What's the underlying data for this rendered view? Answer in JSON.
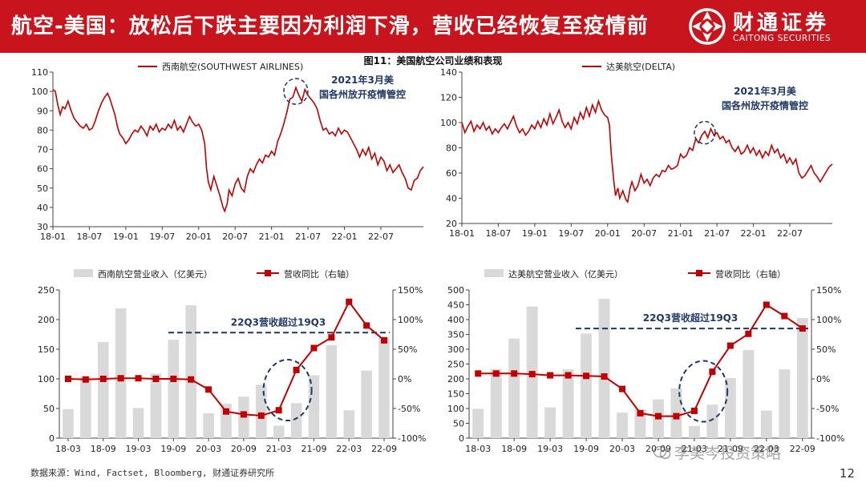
{
  "header": {
    "title": "航空-美国：放松后下跌主要因为利润下滑，营收已经恢复至疫情前",
    "brand_cn": "财通证券",
    "brand_en": "CAITONG SECURITIES"
  },
  "figure_title": "图11：美国航空公司业绩和表现",
  "footer": {
    "source": "数据来源：Wind, Factset, Bloomberg, 财通证券研究所",
    "page": "12",
    "watermark": "李美岑投资策略"
  },
  "colors": {
    "header_bg": "#c8141c",
    "line": "#c00000",
    "bar": "#d9d9d9",
    "dashed": "#1f3864",
    "annotation": "#1f3864"
  },
  "chart_data": [
    {
      "id": "sw-price",
      "type": "line",
      "series_name": "西南航空(SOUTHWEST AIRLINES)",
      "ylim": [
        30,
        110
      ],
      "yticks": [
        30,
        40,
        50,
        60,
        70,
        80,
        90,
        100,
        110
      ],
      "xlim": [
        0,
        61
      ],
      "xtick_labels": [
        "18-01",
        "18-07",
        "19-01",
        "19-07",
        "20-01",
        "20-07",
        "21-01",
        "21-07",
        "22-01",
        "22-07"
      ],
      "xtick_positions": [
        0,
        6,
        12,
        18,
        24,
        30,
        36,
        42,
        48,
        54
      ],
      "annotation": "2021年3月美国各州放开疫情管控",
      "annotation_at": [
        40,
        100
      ],
      "values": [
        [
          0,
          101
        ],
        [
          0.4,
          100
        ],
        [
          0.8,
          93
        ],
        [
          1.2,
          88
        ],
        [
          1.6,
          92
        ],
        [
          2,
          91
        ],
        [
          2.5,
          95
        ],
        [
          3,
          90
        ],
        [
          3.5,
          86
        ],
        [
          4,
          84
        ],
        [
          4.5,
          82
        ],
        [
          5,
          81
        ],
        [
          5.5,
          83
        ],
        [
          6,
          80
        ],
        [
          6.5,
          81
        ],
        [
          7,
          85
        ],
        [
          7.5,
          90
        ],
        [
          8,
          94
        ],
        [
          8.5,
          97
        ],
        [
          9,
          99
        ],
        [
          9.4,
          96
        ],
        [
          9.8,
          92
        ],
        [
          10.2,
          88
        ],
        [
          10.6,
          82
        ],
        [
          11,
          78
        ],
        [
          11.5,
          76
        ],
        [
          12,
          73
        ],
        [
          12.5,
          75
        ],
        [
          13,
          78
        ],
        [
          13.5,
          80
        ],
        [
          14,
          79
        ],
        [
          14.5,
          82
        ],
        [
          15,
          80
        ],
        [
          15.5,
          77
        ],
        [
          16,
          82
        ],
        [
          16.5,
          80
        ],
        [
          17,
          83
        ],
        [
          17.5,
          79
        ],
        [
          18,
          81
        ],
        [
          18.5,
          80
        ],
        [
          19,
          83
        ],
        [
          19.5,
          81
        ],
        [
          20,
          85
        ],
        [
          20.5,
          80
        ],
        [
          21,
          82
        ],
        [
          21.5,
          79
        ],
        [
          22,
          83
        ],
        [
          22.5,
          87
        ],
        [
          23,
          84
        ],
        [
          23.5,
          82
        ],
        [
          24,
          83
        ],
        [
          24.5,
          80
        ],
        [
          25,
          73
        ],
        [
          25.3,
          60
        ],
        [
          25.6,
          53
        ],
        [
          26,
          49
        ],
        [
          26.5,
          56
        ],
        [
          27,
          51
        ],
        [
          27.5,
          46
        ],
        [
          28,
          40
        ],
        [
          28.3,
          38
        ],
        [
          28.7,
          42
        ],
        [
          29,
          49
        ],
        [
          29.5,
          46
        ],
        [
          30,
          52
        ],
        [
          30.5,
          55
        ],
        [
          31,
          50
        ],
        [
          31.5,
          48
        ],
        [
          32,
          56
        ],
        [
          32.5,
          60
        ],
        [
          33,
          58
        ],
        [
          33.5,
          62
        ],
        [
          34,
          65
        ],
        [
          34.5,
          63
        ],
        [
          35,
          67
        ],
        [
          35.5,
          66
        ],
        [
          36,
          69
        ],
        [
          36.5,
          67
        ],
        [
          37,
          74
        ],
        [
          37.5,
          78
        ],
        [
          38,
          83
        ],
        [
          38.5,
          89
        ],
        [
          39,
          96
        ],
        [
          39.5,
          97
        ],
        [
          40,
          102
        ],
        [
          40.5,
          98
        ],
        [
          41,
          95
        ],
        [
          41.5,
          101
        ],
        [
          42,
          98
        ],
        [
          42.5,
          96
        ],
        [
          43,
          94
        ],
        [
          43.5,
          91
        ],
        [
          44,
          85
        ],
        [
          44.5,
          80
        ],
        [
          45,
          81
        ],
        [
          45.5,
          78
        ],
        [
          46,
          79
        ],
        [
          46.5,
          77
        ],
        [
          47,
          81
        ],
        [
          47.5,
          78
        ],
        [
          48,
          80
        ],
        [
          48.5,
          79
        ],
        [
          49,
          76
        ],
        [
          49.5,
          73
        ],
        [
          50,
          70
        ],
        [
          50.5,
          66
        ],
        [
          51,
          70
        ],
        [
          51.5,
          67
        ],
        [
          52,
          71
        ],
        [
          52.5,
          65
        ],
        [
          53,
          68
        ],
        [
          53.5,
          62
        ],
        [
          54,
          66
        ],
        [
          54.5,
          64
        ],
        [
          55,
          59
        ],
        [
          55.5,
          62
        ],
        [
          56,
          58
        ],
        [
          56.5,
          60
        ],
        [
          57,
          62
        ],
        [
          57.5,
          58
        ],
        [
          58,
          55
        ],
        [
          58.5,
          50
        ],
        [
          59,
          49
        ],
        [
          59.5,
          54
        ],
        [
          60,
          55
        ],
        [
          60.5,
          59
        ],
        [
          61,
          61
        ]
      ]
    },
    {
      "id": "dl-price",
      "type": "line",
      "series_name": "达美航空(DELTA)",
      "ylim": [
        20,
        140
      ],
      "yticks": [
        20,
        40,
        60,
        80,
        100,
        120,
        140
      ],
      "xlim": [
        0,
        61
      ],
      "xtick_labels": [
        "18-01",
        "18-07",
        "19-01",
        "19-07",
        "20-01",
        "20-07",
        "21-01",
        "21-07",
        "22-01",
        "22-07"
      ],
      "xtick_positions": [
        0,
        6,
        12,
        18,
        24,
        30,
        36,
        42,
        48,
        54
      ],
      "annotation": "2021年3月美国各州放开疫情管控",
      "annotation_at": [
        40,
        92
      ],
      "values": [
        [
          0,
          100
        ],
        [
          0.5,
          92
        ],
        [
          1,
          97
        ],
        [
          1.5,
          101
        ],
        [
          2,
          93
        ],
        [
          2.5,
          98
        ],
        [
          3,
          95
        ],
        [
          3.5,
          100
        ],
        [
          4,
          94
        ],
        [
          4.5,
          97
        ],
        [
          5,
          91
        ],
        [
          5.5,
          95
        ],
        [
          6,
          92
        ],
        [
          6.5,
          96
        ],
        [
          7,
          99
        ],
        [
          7.5,
          95
        ],
        [
          8,
          100
        ],
        [
          8.5,
          105
        ],
        [
          9,
          97
        ],
        [
          9.5,
          92
        ],
        [
          10,
          95
        ],
        [
          10.5,
          90
        ],
        [
          11,
          93
        ],
        [
          11.5,
          98
        ],
        [
          12,
          95
        ],
        [
          12.5,
          101
        ],
        [
          13,
          96
        ],
        [
          13.5,
          103
        ],
        [
          14,
          98
        ],
        [
          14.5,
          107
        ],
        [
          15,
          99
        ],
        [
          15.5,
          104
        ],
        [
          16,
          110
        ],
        [
          16.5,
          101
        ],
        [
          17,
          96
        ],
        [
          17.5,
          100
        ],
        [
          18,
          95
        ],
        [
          18.5,
          104
        ],
        [
          19,
          99
        ],
        [
          19.5,
          108
        ],
        [
          20,
          103
        ],
        [
          20.5,
          112
        ],
        [
          21,
          105
        ],
        [
          21.5,
          114
        ],
        [
          22,
          108
        ],
        [
          22.5,
          117
        ],
        [
          23,
          110
        ],
        [
          23.5,
          106
        ],
        [
          24,
          104
        ],
        [
          24.3,
          98
        ],
        [
          24.6,
          75
        ],
        [
          25,
          55
        ],
        [
          25.3,
          42
        ],
        [
          25.7,
          48
        ],
        [
          26,
          40
        ],
        [
          26.5,
          46
        ],
        [
          27,
          39
        ],
        [
          27.3,
          37
        ],
        [
          27.7,
          48
        ],
        [
          28,
          53
        ],
        [
          28.5,
          46
        ],
        [
          29,
          50
        ],
        [
          29.5,
          59
        ],
        [
          30,
          52
        ],
        [
          30.5,
          55
        ],
        [
          31,
          50
        ],
        [
          31.5,
          56
        ],
        [
          32,
          59
        ],
        [
          32.5,
          57
        ],
        [
          33,
          62
        ],
        [
          33.5,
          61
        ],
        [
          34,
          66
        ],
        [
          34.5,
          63
        ],
        [
          35,
          64
        ],
        [
          35.5,
          66
        ],
        [
          36,
          75
        ],
        [
          36.5,
          72
        ],
        [
          37,
          74
        ],
        [
          37.5,
          80
        ],
        [
          38,
          78
        ],
        [
          38.5,
          87
        ],
        [
          39,
          84
        ],
        [
          39.5,
          90
        ],
        [
          40,
          93
        ],
        [
          40.5,
          88
        ],
        [
          41,
          95
        ],
        [
          41.5,
          90
        ],
        [
          42,
          92
        ],
        [
          42.5,
          87
        ],
        [
          43,
          89
        ],
        [
          43.5,
          84
        ],
        [
          44,
          86
        ],
        [
          44.5,
          80
        ],
        [
          45,
          77
        ],
        [
          45.5,
          81
        ],
        [
          46,
          75
        ],
        [
          46.5,
          77
        ],
        [
          47,
          82
        ],
        [
          47.5,
          76
        ],
        [
          48,
          80
        ],
        [
          48.5,
          74
        ],
        [
          49,
          78
        ],
        [
          49.5,
          72
        ],
        [
          50,
          77
        ],
        [
          50.5,
          74
        ],
        [
          51,
          82
        ],
        [
          51.5,
          76
        ],
        [
          52,
          79
        ],
        [
          52.5,
          72
        ],
        [
          53,
          75
        ],
        [
          53.5,
          68
        ],
        [
          54,
          72
        ],
        [
          54.5,
          67
        ],
        [
          55,
          71
        ],
        [
          55.5,
          60
        ],
        [
          56,
          56
        ],
        [
          56.5,
          58
        ],
        [
          57,
          62
        ],
        [
          57.5,
          66
        ],
        [
          58,
          60
        ],
        [
          58.5,
          57
        ],
        [
          59,
          53
        ],
        [
          59.5,
          57
        ],
        [
          60,
          61
        ],
        [
          60.5,
          65
        ],
        [
          61,
          67
        ]
      ]
    },
    {
      "id": "sw-revenue",
      "type": "bar+line",
      "bar_series_name": "西南航空营业收入（亿美元）",
      "line_series_name": "营收同比（右轴）",
      "categories": [
        "18-03",
        "18-06",
        "18-09",
        "18-12",
        "19-03",
        "19-06",
        "19-09",
        "19-12",
        "20-03",
        "20-06",
        "20-09",
        "20-12",
        "21-03",
        "21-06",
        "21-09",
        "21-12",
        "22-03",
        "22-06",
        "22-09"
      ],
      "xtick_labels": [
        "18-03",
        "18-09",
        "19-03",
        "19-09",
        "20-03",
        "20-09",
        "21-03",
        "21-09",
        "22-03",
        "22-09"
      ],
      "bars": [
        49,
        104,
        162,
        219,
        51,
        109,
        166,
        224,
        42,
        58,
        70,
        90,
        21,
        59,
        106,
        157,
        47,
        114,
        170
      ],
      "yoy_pct": [
        0,
        -1,
        0,
        1,
        1,
        0,
        0,
        -1,
        -18,
        -55,
        -60,
        -62,
        -53,
        15,
        52,
        70,
        130,
        90,
        65
      ],
      "ylim_left": [
        0,
        250
      ],
      "yticks_left": [
        0,
        50,
        100,
        150,
        200,
        250
      ],
      "ylim_right_pct": [
        -100,
        150
      ],
      "yticks_right": [
        "-100%",
        "-50%",
        "0%",
        "50%",
        "100%",
        "150%"
      ],
      "reference_line_pct": 78,
      "annotation": "22Q3营收超过19Q3"
    },
    {
      "id": "dl-revenue",
      "type": "bar+line",
      "bar_series_name": "达美航空营业收入（亿美元）",
      "line_series_name": "营收同比（右轴）",
      "categories": [
        "18-03",
        "18-06",
        "18-09",
        "18-12",
        "19-03",
        "19-06",
        "19-09",
        "19-12",
        "20-03",
        "20-06",
        "20-09",
        "20-12",
        "21-03",
        "21-06",
        "21-09",
        "21-12",
        "22-03",
        "22-06",
        "22-09"
      ],
      "xtick_labels": [
        "18-03",
        "18-09",
        "19-03",
        "19-09",
        "20-03",
        "20-09",
        "21-03",
        "21-09",
        "22-03",
        "22-09"
      ],
      "bars": [
        99,
        233,
        336,
        444,
        104,
        232,
        353,
        470,
        86,
        98,
        131,
        168,
        41,
        113,
        203,
        297,
        93,
        232,
        405
      ],
      "yoy_pct": [
        9,
        9,
        9,
        8,
        6,
        6,
        5,
        4,
        -17,
        -58,
        -63,
        -63,
        -54,
        12,
        56,
        76,
        125,
        106,
        85
      ],
      "ylim_left": [
        0,
        500
      ],
      "yticks_left": [
        0,
        50,
        100,
        150,
        200,
        250,
        300,
        350,
        400,
        450,
        500
      ],
      "ylim_right_pct": [
        -100,
        150
      ],
      "yticks_right": [
        "-100%",
        "-50%",
        "0%",
        "50%",
        "100%",
        "150%"
      ],
      "reference_line_pct": 85,
      "annotation": "22Q3营收超过19Q3"
    }
  ]
}
